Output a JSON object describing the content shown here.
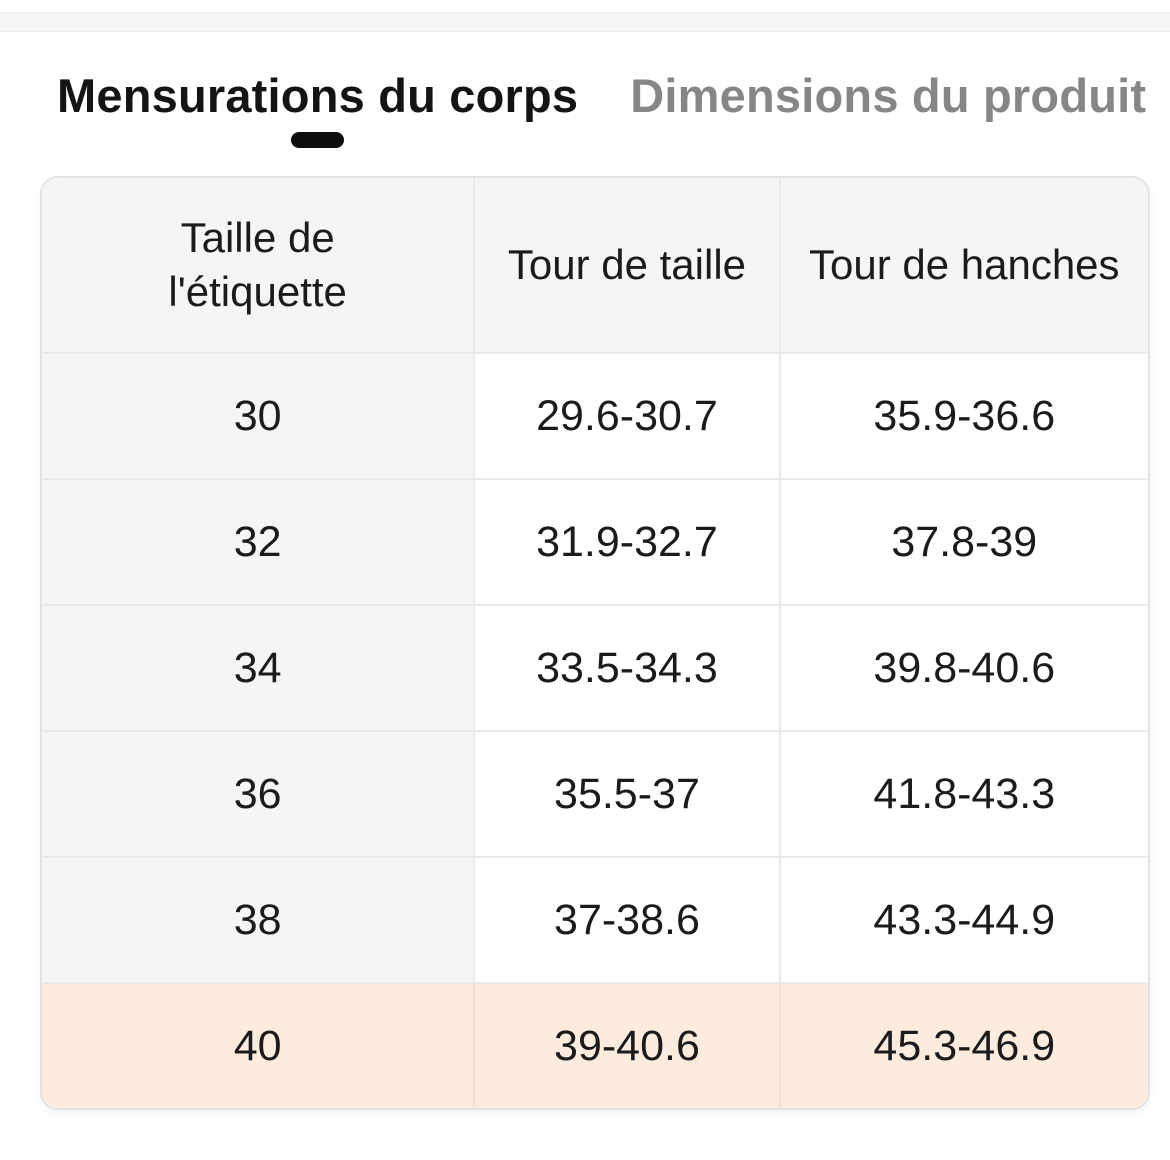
{
  "tabs": [
    {
      "label": "Mensurations du corps",
      "active": true
    },
    {
      "label": "Dimensions du produit",
      "active": false
    }
  ],
  "table": {
    "columns": {
      "size": "Taille de l'étiquette",
      "waist": "Tour de taille",
      "hips": "Tour de hanches"
    },
    "rows": [
      {
        "size": "30",
        "waist": "29.6-30.7",
        "hips": "35.9-36.6",
        "highlighted": false
      },
      {
        "size": "32",
        "waist": "31.9-32.7",
        "hips": "37.8-39",
        "highlighted": false
      },
      {
        "size": "34",
        "waist": "33.5-34.3",
        "hips": "39.8-40.6",
        "highlighted": false
      },
      {
        "size": "36",
        "waist": "35.5-37",
        "hips": "41.8-43.3",
        "highlighted": false
      },
      {
        "size": "38",
        "waist": "37-38.6",
        "hips": "43.3-44.9",
        "highlighted": false
      },
      {
        "size": "40",
        "waist": "39-40.6",
        "hips": "45.3-46.9",
        "highlighted": true
      }
    ]
  },
  "colors": {
    "active_tab_text": "#141414",
    "inactive_tab_text": "#868686",
    "tab_indicator": "#0d0d0d",
    "header_background": "#f5f5f6",
    "size_column_background": "#f5f5f6",
    "highlight_row_background": "#fdecde",
    "table_border": "#e3e3e4"
  }
}
